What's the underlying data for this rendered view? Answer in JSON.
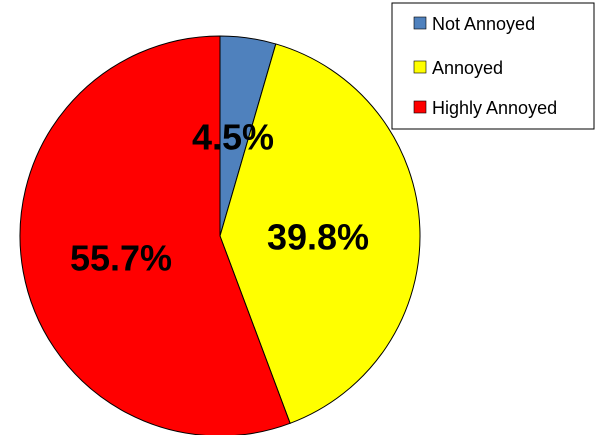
{
  "chart_data": {
    "type": "pie",
    "categories": [
      "Not Annoyed",
      "Annoyed",
      "Highly Annoyed"
    ],
    "values": [
      4.5,
      39.8,
      55.7
    ],
    "labels": [
      "4.5%",
      "39.8%",
      "55.7%"
    ],
    "colors": [
      "#4f81bd",
      "#ffff00",
      "#ff0000"
    ],
    "start_angle": "12 o'clock",
    "direction": "clockwise",
    "legend": {
      "placement": "top-right",
      "entries": [
        "Not Annoyed",
        "Annoyed",
        "Highly Annoyed"
      ]
    }
  }
}
